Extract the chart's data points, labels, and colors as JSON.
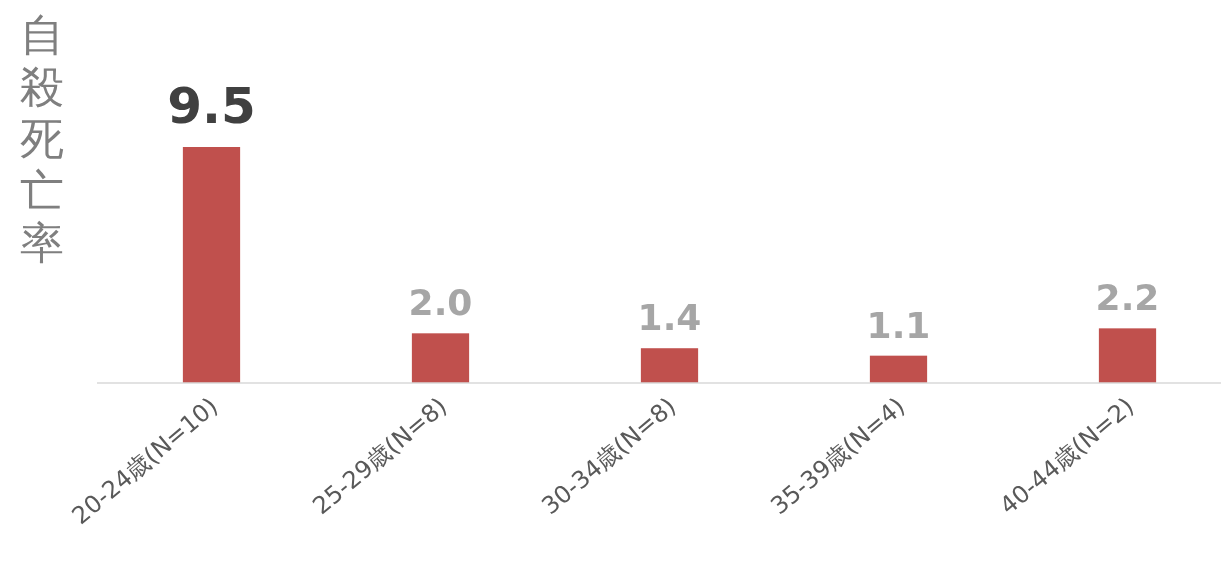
{
  "chart_data": {
    "type": "bar",
    "ylabel": "自殺死亡率",
    "categories": [
      "20-24歳(N=10)",
      "25-29歳(N=8)",
      "30-34歳(N=8)",
      "35-39歳(N=4)",
      "40-44歳(N=2)"
    ],
    "values": [
      9.5,
      2.0,
      1.4,
      1.1,
      2.2
    ],
    "value_labels": [
      "9.5",
      "2.0",
      "1.4",
      "1.1",
      "2.2"
    ],
    "color": "#c0504d"
  }
}
